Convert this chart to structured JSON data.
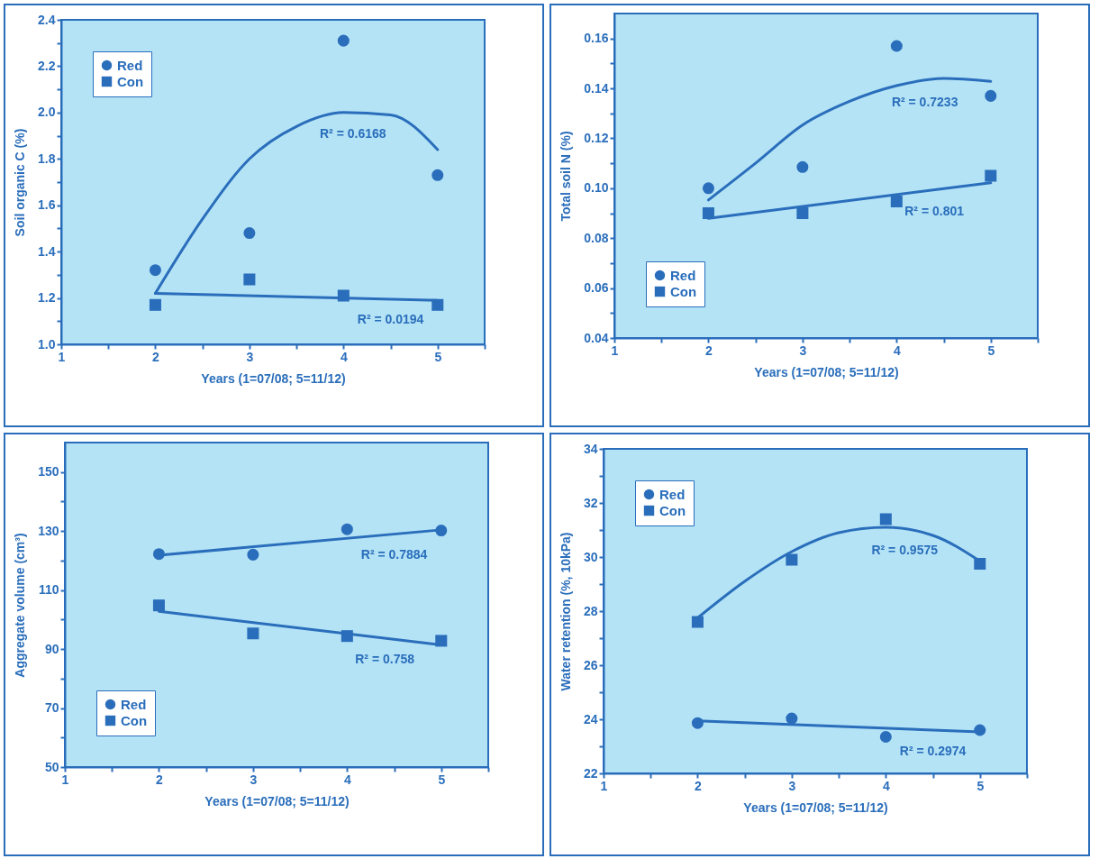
{
  "chart_data": [
    {
      "type": "scatter",
      "xlabel": "Years (1=07/08; 5=11/12)",
      "ylabel": "Soil organic C (%)",
      "xlim": [
        1,
        5.5
      ],
      "xticks": [
        1,
        {
          "value": 1.5,
          "label": null
        },
        2,
        {
          "value": 2.5,
          "label": null
        },
        3,
        {
          "value": 3.5,
          "label": null
        },
        4,
        {
          "value": 4.5,
          "label": null
        },
        5,
        {
          "value": 5.5,
          "label": null
        }
      ],
      "ylim": [
        1.0,
        2.4
      ],
      "yticks": [
        {
          "value": 1,
          "label": "1.0"
        },
        {
          "value": 1.1,
          "label": null
        },
        1.2,
        {
          "value": 1.3,
          "label": null
        },
        1.4,
        {
          "value": 1.5,
          "label": null
        },
        1.6,
        {
          "value": 1.7,
          "label": null
        },
        1.8,
        {
          "value": 1.9,
          "label": null
        },
        {
          "value": 2,
          "label": "2.0"
        },
        {
          "value": 2.1,
          "label": null
        },
        2.2,
        {
          "value": 2.3,
          "label": null
        },
        2.4
      ],
      "legend": "top left",
      "x": [
        2,
        3,
        4,
        5
      ],
      "series": [
        {
          "name": "Red",
          "marker": "circle",
          "color": "#2a6ebb",
          "values": [
            1.32,
            1.48,
            2.31,
            1.73
          ]
        },
        {
          "name": "Con",
          "marker": "square",
          "color": "#2a6ebb",
          "values": [
            1.17,
            1.28,
            1.21,
            1.17
          ]
        },
        {
          "type": "line",
          "color": "#2a6ebb",
          "x": [
            2,
            2.5,
            3,
            3.5,
            4,
            4.5,
            5
          ],
          "values": [
            1.22,
            1.54,
            1.8,
            1.94,
            2.0,
            1.99,
            1.84
          ]
        },
        {
          "type": "line",
          "color": "#2a6ebb",
          "x": [
            2,
            5
          ],
          "values": [
            1.22,
            1.19
          ]
        }
      ],
      "annotations": [
        {
          "text": "R² = 0.6168",
          "x": 4.1,
          "y": 2.0
        },
        {
          "text": "R² = 0.0194",
          "x": 4.5,
          "y": 1.2
        }
      ]
    },
    {
      "type": "scatter",
      "xlabel": "Years (1=07/08; 5=11/12)",
      "ylabel": "Total soil N (%)",
      "xlim": [
        1,
        5.5
      ],
      "xticks": [
        1,
        {
          "value": 1.5,
          "label": null
        },
        2,
        {
          "value": 2.5,
          "label": null
        },
        3,
        {
          "value": 3.5,
          "label": null
        },
        4,
        {
          "value": 4.5,
          "label": null
        },
        5,
        {
          "value": 5.5,
          "label": null
        }
      ],
      "ylim": [
        0.04,
        0.17
      ],
      "yticks": [
        0.04,
        {
          "value": 0.05,
          "label": null
        },
        0.06,
        {
          "value": 0.07,
          "label": null
        },
        0.08,
        {
          "value": 0.09,
          "label": null
        },
        {
          "value": 0.1,
          "label": "0.10"
        },
        {
          "value": 0.11,
          "label": null
        },
        0.12,
        {
          "value": 0.13,
          "label": null
        },
        0.14,
        {
          "value": 0.15,
          "label": null
        },
        0.16
      ],
      "legend": "bottom left",
      "x": [
        2,
        3,
        4,
        5
      ],
      "series": [
        {
          "name": "Red",
          "marker": "circle",
          "color": "#2a6ebb",
          "values": [
            0.1,
            0.1085,
            0.157,
            0.137
          ]
        },
        {
          "name": "Con",
          "marker": "square",
          "color": "#2a6ebb",
          "values": [
            0.09,
            0.09,
            0.0947,
            0.105
          ]
        },
        {
          "type": "line",
          "color": "#2a6ebb",
          "x": [
            2,
            2.5,
            3,
            3.5,
            4,
            4.5,
            5
          ],
          "values": [
            0.0953,
            0.11,
            0.1253,
            0.1348,
            0.1411,
            0.144,
            0.1428
          ]
        },
        {
          "type": "line",
          "color": "#2a6ebb",
          "x": [
            2,
            5
          ],
          "values": [
            0.0879,
            0.1022
          ]
        }
      ],
      "annotations": [
        {
          "text": "R² = 0.7233",
          "x": 4.3,
          "y": 0.143
        },
        {
          "text": "R² = 0.801",
          "x": 4.4,
          "y": 0.0993
        }
      ]
    },
    {
      "type": "scatter",
      "xlabel": "Years (1=07/08; 5=11/12)",
      "ylabel": "Aggregate volume (cm³)",
      "xlim": [
        1,
        5.5
      ],
      "xticks": [
        1,
        {
          "value": 1.5,
          "label": null
        },
        2,
        {
          "value": 2.5,
          "label": null
        },
        3,
        {
          "value": 3.5,
          "label": null
        },
        4,
        {
          "value": 4.5,
          "label": null
        },
        5,
        {
          "value": 5.5,
          "label": null
        }
      ],
      "ylim": [
        50,
        160
      ],
      "yticks": [
        50,
        {
          "value": 60,
          "label": null
        },
        70,
        {
          "value": 80,
          "label": null
        },
        90,
        {
          "value": 100,
          "label": null
        },
        110,
        {
          "value": 120,
          "label": null
        },
        130,
        {
          "value": 140,
          "label": null
        },
        150
      ],
      "legend": "bottom left",
      "x": [
        2,
        3,
        4,
        5
      ],
      "series": [
        {
          "name": "Red",
          "marker": "circle",
          "color": "#2a6ebb",
          "values": [
            122.2,
            122,
            130.6,
            130.2
          ]
        },
        {
          "name": "Con",
          "marker": "square",
          "color": "#2a6ebb",
          "values": [
            104.8,
            95.3,
            94.4,
            92.8
          ]
        },
        {
          "type": "line",
          "color": "#2a6ebb",
          "x": [
            2,
            5
          ],
          "values": [
            121.8,
            130.4
          ]
        },
        {
          "type": "line",
          "color": "#2a6ebb",
          "x": [
            2,
            5
          ],
          "values": [
            102.8,
            91.4
          ]
        }
      ],
      "annotations": [
        {
          "text": "R² = 0.7884",
          "x": 4.5,
          "y": 129
        },
        {
          "text": "R² = 0.758",
          "x": 4.4,
          "y": 93.7
        }
      ]
    },
    {
      "type": "scatter",
      "xlabel": "Years (1=07/08; 5=11/12)",
      "ylabel": "Water retention (%, 10kPa)",
      "xlim": [
        1,
        5.5
      ],
      "xticks": [
        1,
        {
          "value": 1.5,
          "label": null
        },
        2,
        {
          "value": 2.5,
          "label": null
        },
        3,
        {
          "value": 3.5,
          "label": null
        },
        4,
        {
          "value": 4.5,
          "label": null
        },
        5,
        {
          "value": 5.5,
          "label": null
        }
      ],
      "ylim": [
        22,
        34
      ],
      "yticks": [
        22,
        {
          "value": 23,
          "label": null
        },
        24,
        {
          "value": 25,
          "label": null
        },
        26,
        {
          "value": 27,
          "label": null
        },
        28,
        {
          "value": 29,
          "label": null
        },
        30,
        {
          "value": 31,
          "label": null
        },
        32,
        {
          "value": 33,
          "label": null
        },
        34
      ],
      "legend": "top left",
      "x": [
        2,
        3,
        4,
        5
      ],
      "series": [
        {
          "name": "Red",
          "marker": "circle",
          "color": "#2a6ebb",
          "values": [
            23.86,
            24.03,
            23.35,
            23.6
          ]
        },
        {
          "name": "Con",
          "marker": "square",
          "color": "#2a6ebb",
          "values": [
            27.6,
            29.9,
            31.4,
            29.75
          ]
        },
        {
          "type": "line",
          "color": "#2a6ebb",
          "x": [
            2,
            2.5,
            3,
            3.5,
            4,
            4.5,
            5
          ],
          "values": [
            27.75,
            29.1,
            30.2,
            30.9,
            31.1,
            30.8,
            29.85
          ]
        },
        {
          "type": "line",
          "color": "#2a6ebb",
          "x": [
            2,
            5
          ],
          "values": [
            23.94,
            23.53
          ]
        }
      ],
      "annotations": [
        {
          "text": "R² = 0.9575",
          "x": 4.2,
          "y": 31.05
        },
        {
          "text": "R² = 0.2974",
          "x": 4.5,
          "y": 23.6
        }
      ]
    }
  ]
}
